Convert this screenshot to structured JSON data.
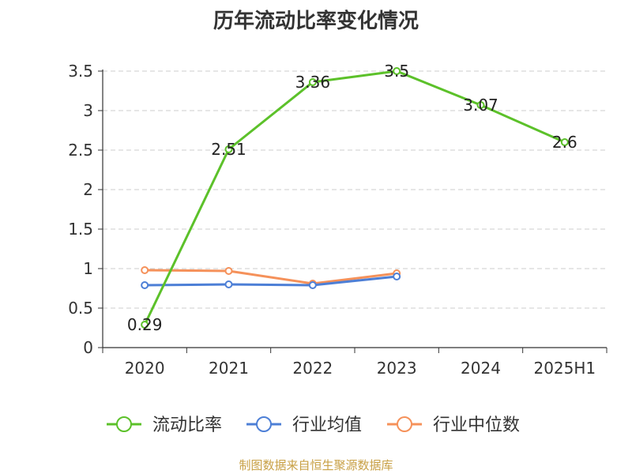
{
  "chart_data": {
    "type": "line",
    "title": "历年流动比率变化情况",
    "categories": [
      "2020",
      "2021",
      "2022",
      "2023",
      "2024",
      "2025H1"
    ],
    "ylim": [
      0,
      3.5
    ],
    "yticks": [
      "0",
      "0.5",
      "1",
      "1.5",
      "2",
      "2.5",
      "3",
      "3.5"
    ],
    "grid": true,
    "legend_position": "bottom",
    "series": [
      {
        "name": "流动比率",
        "color": "#5cc12a",
        "values": [
          0.29,
          2.51,
          3.36,
          3.5,
          3.07,
          2.6
        ],
        "labels": [
          "0.29",
          "2.51",
          "3.36",
          "3.5",
          "3.07",
          "2.6"
        ]
      },
      {
        "name": "行业均值",
        "color": "#4d7fd6",
        "values": [
          0.79,
          0.8,
          0.79,
          0.9,
          null,
          null
        ]
      },
      {
        "name": "行业中位数",
        "color": "#f5915a",
        "values": [
          0.98,
          0.97,
          0.81,
          0.94,
          null,
          null
        ]
      }
    ]
  },
  "source_note": "制图数据来自恒生聚源数据库"
}
